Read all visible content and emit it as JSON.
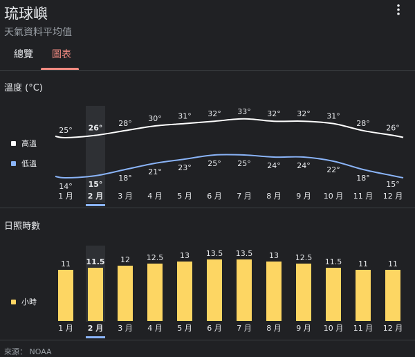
{
  "header": {
    "title": "琉球嶼",
    "subtitle": "天氣資料平均值",
    "menu_icon": "more-vert-icon"
  },
  "tabs": [
    {
      "label": "總覽",
      "active": false
    },
    {
      "label": "圖表",
      "active": true
    }
  ],
  "colors": {
    "background": "#202124",
    "high_line": "#ffffff",
    "low_line": "#8ab4f8",
    "bars": "#fdd663",
    "selected": "#8ab4f8",
    "active_tab": "#f28b82"
  },
  "temperature_section": {
    "title": "溫度 (°C)",
    "legend_high": "高溫",
    "legend_low": "低溫"
  },
  "sunshine_section": {
    "title": "日照時數",
    "legend_hours": "小時"
  },
  "source": "來源： NOAA",
  "chart_data": [
    {
      "type": "line",
      "title": "溫度 (°C)",
      "categories": [
        "1 月",
        "2 月",
        "3 月",
        "4 月",
        "5 月",
        "6 月",
        "7 月",
        "8 月",
        "9 月",
        "10 月",
        "11 月",
        "12 月"
      ],
      "series": [
        {
          "name": "高溫",
          "values": [
            25,
            26,
            28,
            30,
            31,
            32,
            33,
            32,
            32,
            31,
            28,
            26
          ]
        },
        {
          "name": "低溫",
          "values": [
            14,
            15,
            18,
            21,
            23,
            25,
            25,
            24,
            24,
            22,
            18,
            15
          ]
        }
      ],
      "selected_index": 1,
      "legend": "left"
    },
    {
      "type": "bar",
      "title": "日照時數",
      "categories": [
        "1 月",
        "2 月",
        "3 月",
        "4 月",
        "5 月",
        "6 月",
        "7 月",
        "8 月",
        "9 月",
        "10 月",
        "11 月",
        "12 月"
      ],
      "series": [
        {
          "name": "小時",
          "values": [
            11,
            11.5,
            12,
            12.5,
            13,
            13.5,
            13.5,
            13,
            12.5,
            11.5,
            11,
            11
          ]
        }
      ],
      "selected_index": 1,
      "legend": "left"
    }
  ]
}
